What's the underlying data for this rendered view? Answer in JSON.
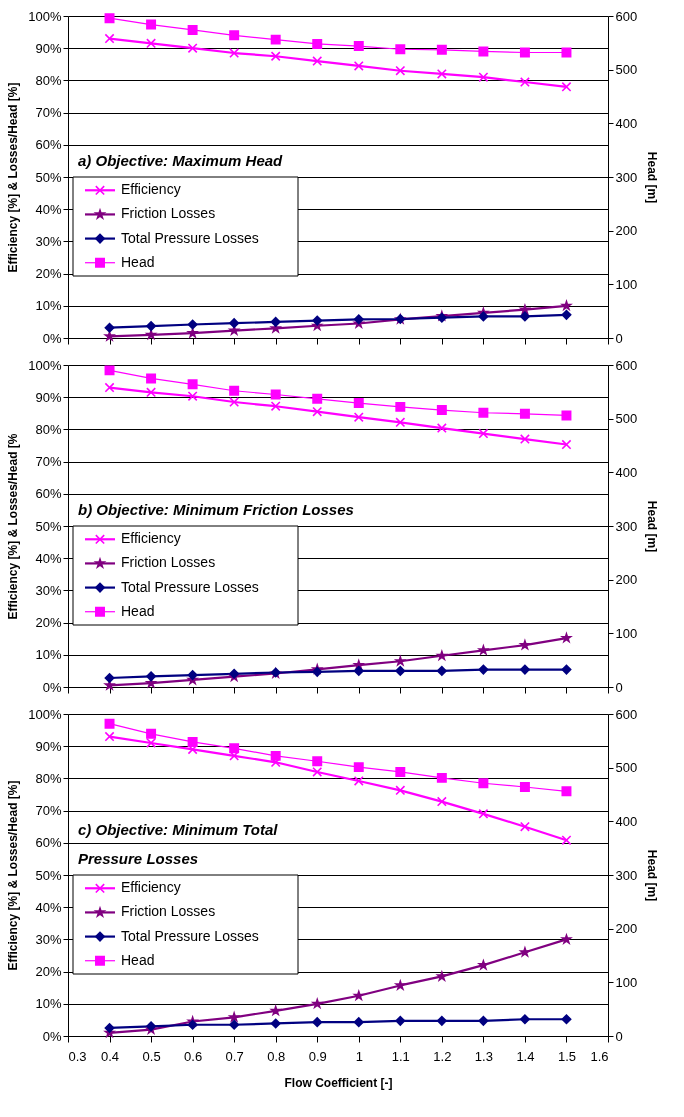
{
  "chart_data": [
    {
      "type": "line",
      "x": [
        0.4,
        0.5,
        0.6,
        0.7,
        0.8,
        0.9,
        1.0,
        1.1,
        1.2,
        1.3,
        1.4,
        1.5
      ],
      "ylabel": "Efficiency [%]  &  Losses/Head [%]",
      "y2label": "Head [m]",
      "annotations": [
        "a) Objective: Maximum Head"
      ],
      "xlim": [
        0.3,
        1.6
      ],
      "xticks": [
        0.3,
        0.4,
        0.5,
        0.6,
        0.7,
        0.8,
        0.9,
        1.0,
        1.1,
        1.2,
        1.3,
        1.4,
        1.5,
        1.6
      ],
      "ylim": [
        0,
        100
      ],
      "yticks": [
        {
          "value": 0,
          "label": "0%"
        },
        {
          "value": 10,
          "label": "10%"
        },
        {
          "value": 20,
          "label": "20%"
        },
        {
          "value": 30,
          "label": "30%"
        },
        {
          "value": 40,
          "label": "40%"
        },
        {
          "value": 50,
          "label": "50%"
        },
        {
          "value": 60,
          "label": "60%"
        },
        {
          "value": 70,
          "label": "70%"
        },
        {
          "value": 80,
          "label": "80%"
        },
        {
          "value": 90,
          "label": "90%"
        },
        {
          "value": 100,
          "label": "100%"
        }
      ],
      "y2lim": [
        0,
        600
      ],
      "y2ticks": [
        0,
        100,
        200,
        300,
        400,
        500,
        600
      ],
      "grid": "y",
      "legend": "left",
      "tick_labels": "y",
      "series": [
        {
          "name": "Efficiency",
          "color": "#ff00ff",
          "marker": "cross",
          "values": [
            93,
            91.5,
            90,
            88.5,
            87.5,
            86,
            84.5,
            83,
            82,
            81,
            79.5,
            78
          ]
        },
        {
          "name": "Friction Losses",
          "color": "#800080",
          "marker": "star",
          "values": [
            0.5,
            1,
            1.5,
            2.3,
            3,
            3.8,
            4.5,
            5.8,
            6.8,
            7.8,
            8.8,
            10
          ]
        },
        {
          "name": "Total Pressure Losses",
          "color": "#000080",
          "marker": "diamond",
          "values": [
            3.2,
            3.7,
            4.2,
            4.6,
            5,
            5.4,
            5.8,
            5.9,
            6.3,
            6.7,
            6.7,
            7.2
          ]
        },
        {
          "name": "Head",
          "color": "#ff00ff",
          "marker": "square",
          "axis": "y2",
          "values": [
            596,
            584,
            574,
            564,
            556,
            548,
            544,
            538,
            537,
            534,
            532,
            532
          ]
        }
      ]
    },
    {
      "type": "line",
      "x": [
        0.4,
        0.5,
        0.6,
        0.7,
        0.8,
        0.9,
        1.0,
        1.1,
        1.2,
        1.3,
        1.4,
        1.5
      ],
      "ylabel": "Efficiency [%]  &  Losses/Head [%",
      "y2label": "Head [m]",
      "annotations": [
        "b) Objective: Minimum Friction Losses"
      ],
      "xlim": [
        0.3,
        1.6
      ],
      "xticks": [
        0.3,
        0.4,
        0.5,
        0.6,
        0.7,
        0.8,
        0.9,
        1.0,
        1.1,
        1.2,
        1.3,
        1.4,
        1.5,
        1.6
      ],
      "ylim": [
        0,
        100
      ],
      "yticks": [
        {
          "value": 0,
          "label": "0%"
        },
        {
          "value": 10,
          "label": "10%"
        },
        {
          "value": 20,
          "label": "20%"
        },
        {
          "value": 30,
          "label": "30%"
        },
        {
          "value": 40,
          "label": "40%"
        },
        {
          "value": 50,
          "label": "50%"
        },
        {
          "value": 60,
          "label": "60%"
        },
        {
          "value": 70,
          "label": "70%"
        },
        {
          "value": 80,
          "label": "80%"
        },
        {
          "value": 90,
          "label": "90%"
        },
        {
          "value": 100,
          "label": "100%"
        }
      ],
      "y2lim": [
        0,
        600
      ],
      "y2ticks": [
        0,
        100,
        200,
        300,
        400,
        500,
        600
      ],
      "grid": "y",
      "legend": "left",
      "tick_labels": "y",
      "series": [
        {
          "name": "Efficiency",
          "color": "#ff00ff",
          "marker": "cross",
          "values": [
            93,
            91.5,
            90.3,
            88.5,
            87.2,
            85.5,
            83.8,
            82.2,
            80.4,
            78.7,
            77,
            75.3
          ]
        },
        {
          "name": "Friction Losses",
          "color": "#800080",
          "marker": "star",
          "values": [
            0.5,
            1.2,
            2.2,
            3.2,
            4.2,
            5.5,
            6.8,
            8,
            9.7,
            11.4,
            13,
            15.2
          ]
        },
        {
          "name": "Total Pressure Losses",
          "color": "#000080",
          "marker": "diamond",
          "values": [
            2.8,
            3.3,
            3.7,
            4.1,
            4.5,
            4.7,
            5,
            5,
            5,
            5.4,
            5.4,
            5.4
          ]
        },
        {
          "name": "Head",
          "color": "#ff00ff",
          "marker": "square",
          "axis": "y2",
          "values": [
            590,
            575,
            564,
            552,
            545,
            537,
            529,
            522,
            516,
            511,
            509,
            506
          ]
        }
      ]
    },
    {
      "type": "line",
      "x": [
        0.4,
        0.5,
        0.6,
        0.7,
        0.8,
        0.9,
        1.0,
        1.1,
        1.2,
        1.3,
        1.4,
        1.5
      ],
      "xlabel": "Flow Coefficient [-]",
      "ylabel": "Efficiency [%]  &  Losses/Head [%]",
      "y2label": "Head [m]",
      "annotations": [
        "c) Objective: Minimum Total\n       Pressure Losses"
      ],
      "xlim": [
        0.3,
        1.6
      ],
      "xticks": [
        0.3,
        0.4,
        0.5,
        0.6,
        0.7,
        0.8,
        0.9,
        1,
        1.1,
        1.2,
        1.3,
        1.4,
        1.5,
        1.6
      ],
      "ylim": [
        0,
        100
      ],
      "yticks": [
        {
          "value": 0,
          "label": "0%"
        },
        {
          "value": 10,
          "label": "10%"
        },
        {
          "value": 20,
          "label": "20%"
        },
        {
          "value": 30,
          "label": "30%"
        },
        {
          "value": 40,
          "label": "40%"
        },
        {
          "value": 50,
          "label": "50%"
        },
        {
          "value": 60,
          "label": "60%"
        },
        {
          "value": 70,
          "label": "70%"
        },
        {
          "value": 80,
          "label": "80%"
        },
        {
          "value": 90,
          "label": "90%"
        },
        {
          "value": 100,
          "label": "100%"
        }
      ],
      "y2lim": [
        0,
        600
      ],
      "y2ticks": [
        0,
        100,
        200,
        300,
        400,
        500,
        600
      ],
      "grid": "y",
      "legend": "left",
      "series": [
        {
          "name": "Efficiency",
          "color": "#ff00ff",
          "marker": "cross",
          "values": [
            93,
            91,
            89,
            87,
            85,
            82,
            79.2,
            76.3,
            72.8,
            69,
            65,
            60.8
          ]
        },
        {
          "name": "Friction Losses",
          "color": "#800080",
          "marker": "star",
          "values": [
            1,
            2,
            4.5,
            5.8,
            7.8,
            10,
            12.5,
            15.7,
            18.5,
            22,
            26,
            30
          ]
        },
        {
          "name": "Total Pressure Losses",
          "color": "#000080",
          "marker": "diamond",
          "values": [
            2.5,
            3,
            3.5,
            3.5,
            3.9,
            4.3,
            4.3,
            4.7,
            4.7,
            4.7,
            5.2,
            5.2
          ]
        },
        {
          "name": "Head",
          "color": "#ff00ff",
          "marker": "square",
          "axis": "y2",
          "values": [
            582,
            563,
            548,
            536,
            522,
            512,
            501,
            492,
            481,
            471,
            464,
            456
          ]
        }
      ]
    }
  ]
}
